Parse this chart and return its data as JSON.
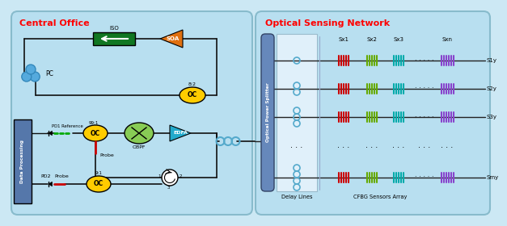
{
  "bg_color": "#cce8f4",
  "left_box_color": "#b8dff0",
  "right_box_color": "#b8dff0",
  "left_title": "Central Office",
  "right_title": "Optical Sensing Network",
  "title_color": "#ff0000",
  "soa_color": "#e07010",
  "iso_color": "#117722",
  "oc_color": "#ffcc00",
  "edfa_color": "#22aacc",
  "obpf_color": "#88cc55",
  "dp_color": "#5577aa",
  "ops_color": "#6688bb",
  "pc_color": "#55aadd",
  "line_color": "#111111",
  "delay_bg": "#e8f4fa",
  "row_labels": [
    "S1y",
    "S2y",
    "S3y",
    "Smy"
  ],
  "col_labels": [
    "Sx1",
    "Sx2",
    "Sx3",
    "Sxn"
  ],
  "sensor_colors": [
    "#cc0000",
    "#66aa00",
    "#00aaaa",
    "#8844cc"
  ]
}
